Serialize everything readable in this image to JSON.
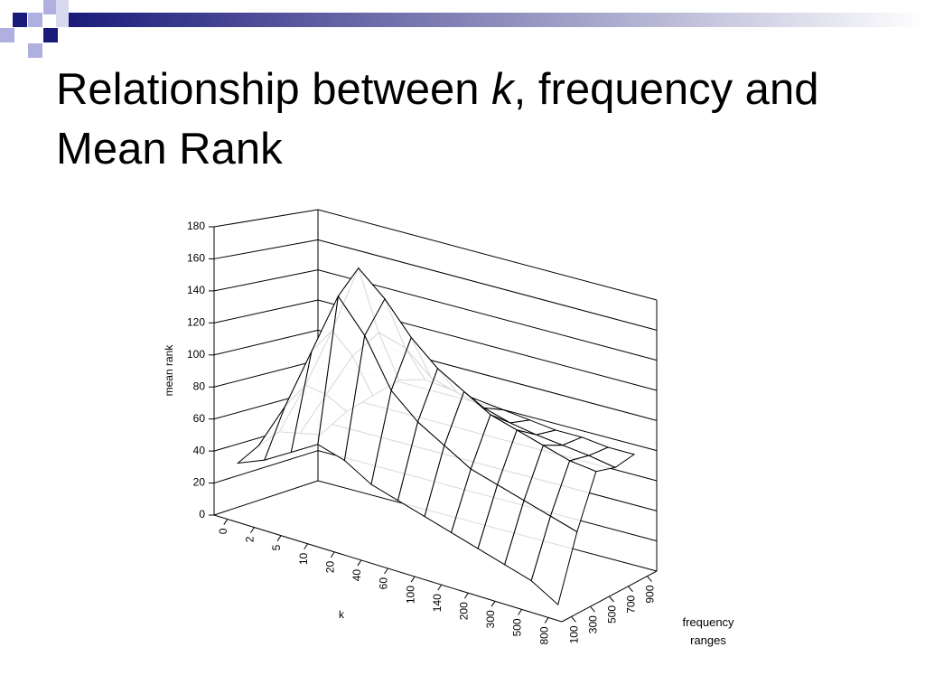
{
  "title_parts": [
    "Relationship between ",
    "k",
    ", frequency and Mean Rank"
  ],
  "chart_data": {
    "type": "surface",
    "y_label": "mean rank",
    "x_label": "k",
    "z_label": "frequency ranges",
    "categories": [
      "0",
      "2",
      "5",
      "10",
      "20",
      "40",
      "60",
      "100",
      "140",
      "200",
      "300",
      "500",
      "800"
    ],
    "series": [
      {
        "name": "100",
        "color": "#ffffff",
        "values": [
          33,
          40,
          50,
          60,
          55,
          45,
          40,
          35,
          30,
          25,
          20,
          15,
          5
        ]
      },
      {
        "name": "300",
        "color": "#ffffff",
        "values": [
          40,
          70,
          110,
          150,
          130,
          100,
          85,
          75,
          65,
          60,
          55,
          50,
          45
        ]
      },
      {
        "name": "500",
        "color": "#ffffff",
        "values": [
          45,
          80,
          120,
          165,
          150,
          130,
          115,
          105,
          95,
          90,
          85,
          80,
          78
        ]
      },
      {
        "name": "700",
        "color": "#ffffff",
        "values": [
          40,
          70,
          100,
          120,
          115,
          100,
          95,
          90,
          85,
          82,
          80,
          78,
          75
        ]
      },
      {
        "name": "900",
        "color": "#ffffff",
        "values": [
          35,
          55,
          70,
          85,
          90,
          88,
          86,
          84,
          82,
          80,
          80,
          78,
          78
        ]
      }
    ],
    "ylim": [
      0,
      180
    ],
    "yticks": [
      0,
      20,
      40,
      60,
      80,
      100,
      120,
      140,
      160,
      180
    ],
    "grid": true
  }
}
